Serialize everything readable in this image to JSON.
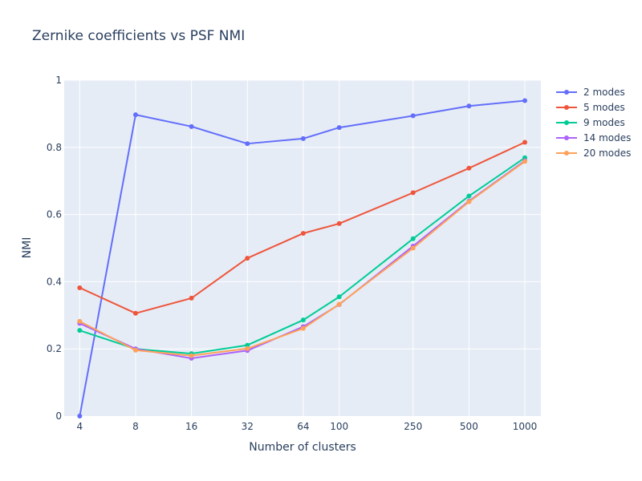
{
  "chart_data": {
    "type": "line",
    "title": "Zernike coefficients vs PSF NMI",
    "xlabel": "Number of clusters",
    "ylabel": "NMI",
    "x_scale": "log",
    "x": [
      4,
      8,
      16,
      32,
      64,
      100,
      250,
      500,
      1000
    ],
    "x_tick_labels": [
      "4",
      "8",
      "16",
      "32",
      "64",
      "100",
      "250",
      "500",
      "1000"
    ],
    "xlim": [
      3.3,
      1220
    ],
    "ylim": [
      0,
      1
    ],
    "y_ticks": [
      0,
      0.2,
      0.4,
      0.6,
      0.8,
      1
    ],
    "y_tick_labels": [
      "0",
      "0.2",
      "0.4",
      "0.6",
      "0.8",
      "1"
    ],
    "grid": true,
    "legend_position": "top-right",
    "series": [
      {
        "name": "2 modes",
        "color": "#636efa",
        "values": [
          0.0,
          0.897,
          0.862,
          0.811,
          0.826,
          0.859,
          0.894,
          0.923,
          0.939
        ]
      },
      {
        "name": "5 modes",
        "color": "#ef553b",
        "values": [
          0.382,
          0.306,
          0.351,
          0.47,
          0.544,
          0.573,
          0.665,
          0.738,
          0.815
        ]
      },
      {
        "name": "9 modes",
        "color": "#00cc96",
        "values": [
          0.255,
          0.2,
          0.186,
          0.211,
          0.286,
          0.355,
          0.528,
          0.655,
          0.769
        ]
      },
      {
        "name": "14 modes",
        "color": "#ab63fa",
        "values": [
          0.276,
          0.2,
          0.172,
          0.195,
          0.266,
          0.332,
          0.506,
          0.64,
          0.76
        ]
      },
      {
        "name": "20 modes",
        "color": "#ffa15a",
        "values": [
          0.282,
          0.196,
          0.18,
          0.201,
          0.261,
          0.333,
          0.5,
          0.638,
          0.758
        ]
      }
    ]
  }
}
